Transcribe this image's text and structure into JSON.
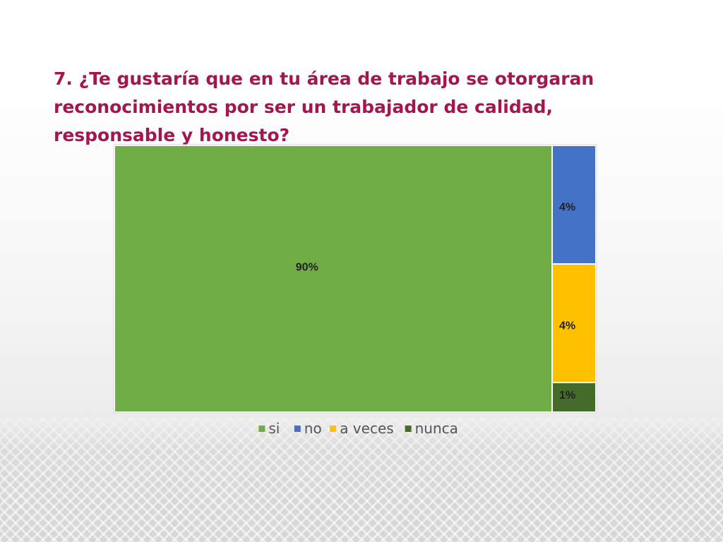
{
  "chart_data": {
    "type": "treemap",
    "title": "7. ¿Te gustaría que en tu área de trabajo se otorgaran reconocimientos por ser un trabajador de calidad, responsable y honesto?",
    "categories": [
      "si",
      "no",
      "a veces",
      "nunca"
    ],
    "values": [
      90,
      4,
      4,
      1
    ],
    "labels": [
      "90%",
      "4%",
      "4%",
      "1%"
    ],
    "colors": [
      "#70ad47",
      "#4472c4",
      "#ffc000",
      "#446b2a"
    ],
    "legend_position": "bottom"
  }
}
